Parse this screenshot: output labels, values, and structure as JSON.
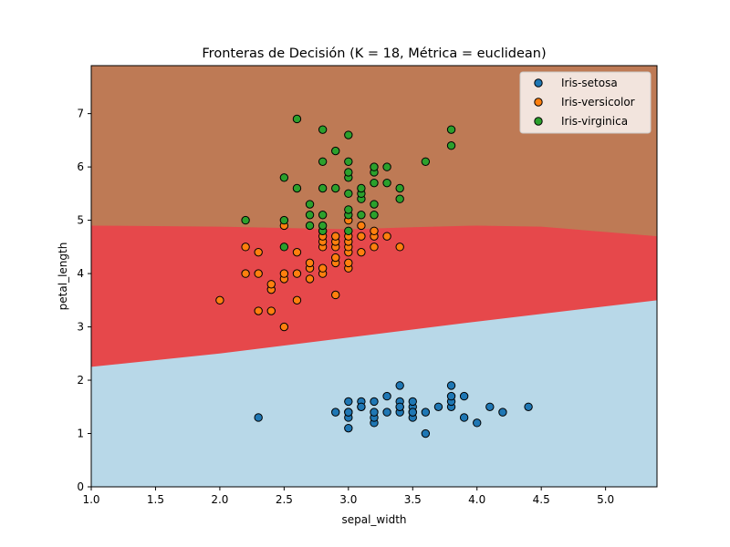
{
  "chart_data": {
    "type": "scatter",
    "title": "Fronteras de Decisión (K = 18, Métrica = euclidean)",
    "xlabel": "sepal_width",
    "ylabel": "petal_length",
    "xlim": [
      1.0,
      5.4
    ],
    "ylim": [
      0,
      7.9
    ],
    "x_ticks": [
      "1.0",
      "1.5",
      "2.0",
      "2.5",
      "3.0",
      "3.5",
      "4.0",
      "4.5",
      "5.0"
    ],
    "y_ticks": [
      "0",
      "1",
      "2",
      "3",
      "4",
      "5",
      "6",
      "7"
    ],
    "grid": false,
    "legend_position": "top-right",
    "decision_regions": [
      {
        "name": "Iris-setosa",
        "color": "#b8d8e8"
      },
      {
        "name": "Iris-versicolor",
        "color": "#e6484b"
      },
      {
        "name": "Iris-virginica",
        "color": "#be7a55"
      }
    ],
    "boundaries": {
      "setosa_versicolor": [
        [
          1.0,
          2.25
        ],
        [
          2.0,
          2.5
        ],
        [
          3.0,
          2.8
        ],
        [
          4.0,
          3.1
        ],
        [
          5.4,
          3.5
        ]
      ],
      "versicolor_virginica": [
        [
          1.0,
          4.9
        ],
        [
          2.0,
          4.88
        ],
        [
          3.0,
          4.83
        ],
        [
          3.5,
          4.87
        ],
        [
          4.0,
          4.9
        ],
        [
          4.5,
          4.88
        ],
        [
          5.4,
          4.7
        ]
      ]
    },
    "series": [
      {
        "name": "Iris-setosa",
        "color": "#1f77b4",
        "points": [
          [
            2.3,
            1.3
          ],
          [
            2.9,
            1.4
          ],
          [
            3.0,
            1.1
          ],
          [
            3.0,
            1.3
          ],
          [
            3.0,
            1.4
          ],
          [
            3.0,
            1.6
          ],
          [
            3.1,
            1.5
          ],
          [
            3.1,
            1.6
          ],
          [
            3.2,
            1.2
          ],
          [
            3.2,
            1.3
          ],
          [
            3.2,
            1.4
          ],
          [
            3.2,
            1.6
          ],
          [
            3.3,
            1.4
          ],
          [
            3.3,
            1.7
          ],
          [
            3.4,
            1.4
          ],
          [
            3.4,
            1.5
          ],
          [
            3.4,
            1.6
          ],
          [
            3.4,
            1.9
          ],
          [
            3.5,
            1.3
          ],
          [
            3.5,
            1.4
          ],
          [
            3.5,
            1.5
          ],
          [
            3.5,
            1.6
          ],
          [
            3.6,
            1.0
          ],
          [
            3.6,
            1.4
          ],
          [
            3.7,
            1.5
          ],
          [
            3.8,
            1.5
          ],
          [
            3.8,
            1.6
          ],
          [
            3.8,
            1.7
          ],
          [
            3.8,
            1.9
          ],
          [
            3.9,
            1.3
          ],
          [
            3.9,
            1.7
          ],
          [
            4.0,
            1.2
          ],
          [
            4.1,
            1.5
          ],
          [
            4.2,
            1.4
          ],
          [
            4.4,
            1.5
          ],
          [
            3.0,
            1.4
          ],
          [
            3.1,
            1.5
          ],
          [
            3.4,
            1.5
          ],
          [
            3.5,
            1.4
          ]
        ]
      },
      {
        "name": "Iris-versicolor",
        "color": "#ff7f0e",
        "points": [
          [
            2.0,
            3.5
          ],
          [
            2.2,
            4.0
          ],
          [
            2.2,
            4.5
          ],
          [
            2.3,
            3.3
          ],
          [
            2.3,
            4.0
          ],
          [
            2.3,
            4.4
          ],
          [
            2.4,
            3.7
          ],
          [
            2.4,
            3.8
          ],
          [
            2.4,
            3.3
          ],
          [
            2.5,
            3.0
          ],
          [
            2.5,
            3.9
          ],
          [
            2.5,
            4.0
          ],
          [
            2.5,
            4.9
          ],
          [
            2.6,
            3.5
          ],
          [
            2.6,
            4.0
          ],
          [
            2.6,
            4.4
          ],
          [
            2.7,
            3.9
          ],
          [
            2.7,
            4.1
          ],
          [
            2.7,
            4.2
          ],
          [
            2.8,
            4.0
          ],
          [
            2.8,
            4.1
          ],
          [
            2.8,
            4.5
          ],
          [
            2.8,
            4.6
          ],
          [
            2.8,
            4.7
          ],
          [
            2.8,
            4.8
          ],
          [
            2.9,
            3.6
          ],
          [
            2.9,
            4.2
          ],
          [
            2.9,
            4.3
          ],
          [
            2.9,
            4.5
          ],
          [
            2.9,
            4.6
          ],
          [
            2.9,
            4.7
          ],
          [
            3.0,
            4.1
          ],
          [
            3.0,
            4.2
          ],
          [
            3.0,
            4.4
          ],
          [
            3.0,
            4.5
          ],
          [
            3.0,
            4.6
          ],
          [
            3.0,
            4.7
          ],
          [
            3.0,
            5.0
          ],
          [
            3.1,
            4.4
          ],
          [
            3.1,
            4.7
          ],
          [
            3.1,
            4.9
          ],
          [
            3.2,
            4.5
          ],
          [
            3.2,
            4.7
          ],
          [
            3.2,
            4.8
          ],
          [
            3.3,
            4.7
          ],
          [
            3.4,
            4.5
          ]
        ]
      },
      {
        "name": "Iris-virginica",
        "color": "#2ca02c",
        "points": [
          [
            2.2,
            5.0
          ],
          [
            2.5,
            4.5
          ],
          [
            2.5,
            5.0
          ],
          [
            2.5,
            5.8
          ],
          [
            2.6,
            5.6
          ],
          [
            2.6,
            6.9
          ],
          [
            2.7,
            4.9
          ],
          [
            2.7,
            5.1
          ],
          [
            2.7,
            5.3
          ],
          [
            2.8,
            4.8
          ],
          [
            2.8,
            4.9
          ],
          [
            2.8,
            5.1
          ],
          [
            2.8,
            5.6
          ],
          [
            2.8,
            6.1
          ],
          [
            2.8,
            6.7
          ],
          [
            2.9,
            5.6
          ],
          [
            2.9,
            6.3
          ],
          [
            3.0,
            4.8
          ],
          [
            3.0,
            5.1
          ],
          [
            3.0,
            5.2
          ],
          [
            3.0,
            5.5
          ],
          [
            3.0,
            5.8
          ],
          [
            3.0,
            5.9
          ],
          [
            3.0,
            6.1
          ],
          [
            3.0,
            6.6
          ],
          [
            3.1,
            5.1
          ],
          [
            3.1,
            5.4
          ],
          [
            3.1,
            5.5
          ],
          [
            3.1,
            5.6
          ],
          [
            3.2,
            5.1
          ],
          [
            3.2,
            5.3
          ],
          [
            3.2,
            5.7
          ],
          [
            3.2,
            5.9
          ],
          [
            3.2,
            6.0
          ],
          [
            3.3,
            5.7
          ],
          [
            3.3,
            6.0
          ],
          [
            3.4,
            5.4
          ],
          [
            3.4,
            5.6
          ],
          [
            3.6,
            6.1
          ],
          [
            3.8,
            6.4
          ],
          [
            3.8,
            6.7
          ]
        ]
      }
    ]
  }
}
